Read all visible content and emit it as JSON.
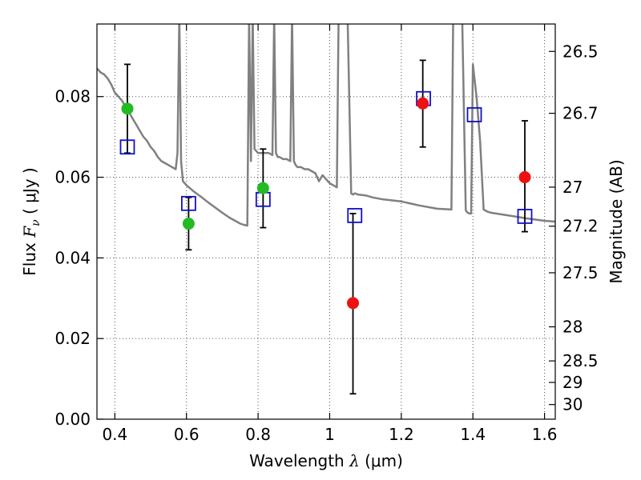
{
  "chart_data": {
    "type": "scatter",
    "title": "",
    "xlabel": "Wavelength",
    "xlabel_symbol": "λ",
    "xlabel_unit": "(μm)",
    "ylabel": "Flux",
    "ylabel_symbol": "F",
    "ylabel_subscript": "ν",
    "ylabel_unit": "( μJy )",
    "y2label": "Magnitude (AB)",
    "xlim": [
      0.35,
      1.63
    ],
    "ylim": [
      0,
      0.098
    ],
    "grid": true,
    "x_ticks": [
      0.4,
      0.6,
      0.8,
      1.0,
      1.2,
      1.4,
      1.6
    ],
    "x_tick_labels": [
      "0.4",
      "0.6",
      "0.8",
      "1",
      "1.2",
      "1.4",
      "1.6"
    ],
    "y_ticks": [
      0,
      0.02,
      0.04,
      0.06,
      0.08
    ],
    "y_tick_labels": [
      "0.00",
      "0.02",
      "0.04",
      "0.06",
      "0.08"
    ],
    "mag_ticks": [
      26.5,
      26.7,
      27,
      27.2,
      27.5,
      28,
      28.5,
      29,
      30
    ],
    "mag_tick_labels": [
      "26.5",
      "26.7",
      "27",
      "27.2",
      "27.5",
      "28",
      "28.5",
      "29",
      "30"
    ],
    "colors": {
      "template": "#808080",
      "detected": "#22bb22",
      "measured": "#ee1111",
      "model": "#1010cc",
      "errorbar": "#000000",
      "grid": "#555555"
    },
    "model_sed": {
      "x": [
        0.35,
        0.36,
        0.37,
        0.38,
        0.39,
        0.4,
        0.41,
        0.42,
        0.43,
        0.44,
        0.45,
        0.46,
        0.47,
        0.48,
        0.49,
        0.5,
        0.51,
        0.52,
        0.53,
        0.54,
        0.55,
        0.56,
        0.57,
        0.575,
        0.58,
        0.585,
        0.59,
        0.6,
        0.62,
        0.64,
        0.66,
        0.68,
        0.7,
        0.72,
        0.74,
        0.75,
        0.76,
        0.77,
        0.775,
        0.78,
        0.785,
        0.79,
        0.8,
        0.81,
        0.82,
        0.83,
        0.84,
        0.845,
        0.85,
        0.855,
        0.86,
        0.87,
        0.88,
        0.89,
        0.895,
        0.9,
        0.905,
        0.91,
        0.92,
        0.93,
        0.94,
        0.95,
        0.96,
        0.97,
        0.98,
        1.0,
        1.01,
        1.02,
        1.025,
        1.03,
        1.035,
        1.04,
        1.05,
        1.06,
        1.065,
        1.07,
        1.08,
        1.1,
        1.12,
        1.15,
        1.2,
        1.25,
        1.3,
        1.34,
        1.345,
        1.35,
        1.36,
        1.37,
        1.38,
        1.385,
        1.39,
        1.395,
        1.4,
        1.41,
        1.42,
        1.43,
        1.44,
        1.45,
        1.5,
        1.55,
        1.6,
        1.63
      ],
      "y": [
        0.087,
        0.086,
        0.0855,
        0.0845,
        0.083,
        0.081,
        0.08,
        0.079,
        0.0775,
        0.076,
        0.0745,
        0.073,
        0.0715,
        0.07,
        0.069,
        0.0675,
        0.0665,
        0.065,
        0.064,
        0.0635,
        0.063,
        0.0625,
        0.062,
        0.066,
        0.1,
        0.064,
        0.059,
        0.058,
        0.0565,
        0.0552,
        0.0538,
        0.0525,
        0.0512,
        0.05,
        0.049,
        0.0485,
        0.0482,
        0.048,
        0.1,
        0.064,
        0.1,
        0.067,
        0.066,
        0.066,
        0.066,
        0.066,
        0.0655,
        0.1,
        0.066,
        0.065,
        0.065,
        0.0645,
        0.0645,
        0.064,
        0.1,
        0.064,
        0.063,
        0.0625,
        0.0625,
        0.062,
        0.062,
        0.0615,
        0.061,
        0.059,
        0.0605,
        0.0585,
        0.058,
        0.0575,
        0.1,
        0.1,
        0.1,
        0.1,
        0.1,
        0.056,
        0.0557,
        0.056,
        0.0557,
        0.0555,
        0.055,
        0.0545,
        0.054,
        0.053,
        0.0522,
        0.052,
        0.1,
        0.1,
        0.1,
        0.1,
        0.0518,
        0.0512,
        0.051,
        0.051,
        0.088,
        0.08,
        0.069,
        0.052,
        0.0515,
        0.0512,
        0.0505,
        0.0498,
        0.0492,
        0.049
      ]
    },
    "observed_detected": [
      {
        "x": 0.435,
        "y": 0.077,
        "err_lo": 0.066,
        "err_hi": 0.088
      },
      {
        "x": 0.606,
        "y": 0.0485,
        "err_lo": 0.042,
        "err_hi": 0.055
      },
      {
        "x": 0.814,
        "y": 0.0573,
        "err_lo": 0.0475,
        "err_hi": 0.067
      }
    ],
    "observed_measured": [
      {
        "x": 1.065,
        "y": 0.0288,
        "err_lo": 0.0063,
        "err_hi": 0.051
      },
      {
        "x": 1.26,
        "y": 0.0783,
        "err_lo": 0.0675,
        "err_hi": 0.089
      },
      {
        "x": 1.545,
        "y": 0.06,
        "err_lo": 0.0465,
        "err_hi": 0.074
      }
    ],
    "model_photometry": [
      {
        "x": 0.435,
        "y": 0.0675
      },
      {
        "x": 0.606,
        "y": 0.0535
      },
      {
        "x": 0.814,
        "y": 0.0545
      },
      {
        "x": 1.07,
        "y": 0.0505
      },
      {
        "x": 1.262,
        "y": 0.0795
      },
      {
        "x": 1.404,
        "y": 0.0755
      },
      {
        "x": 1.545,
        "y": 0.0503
      }
    ]
  }
}
